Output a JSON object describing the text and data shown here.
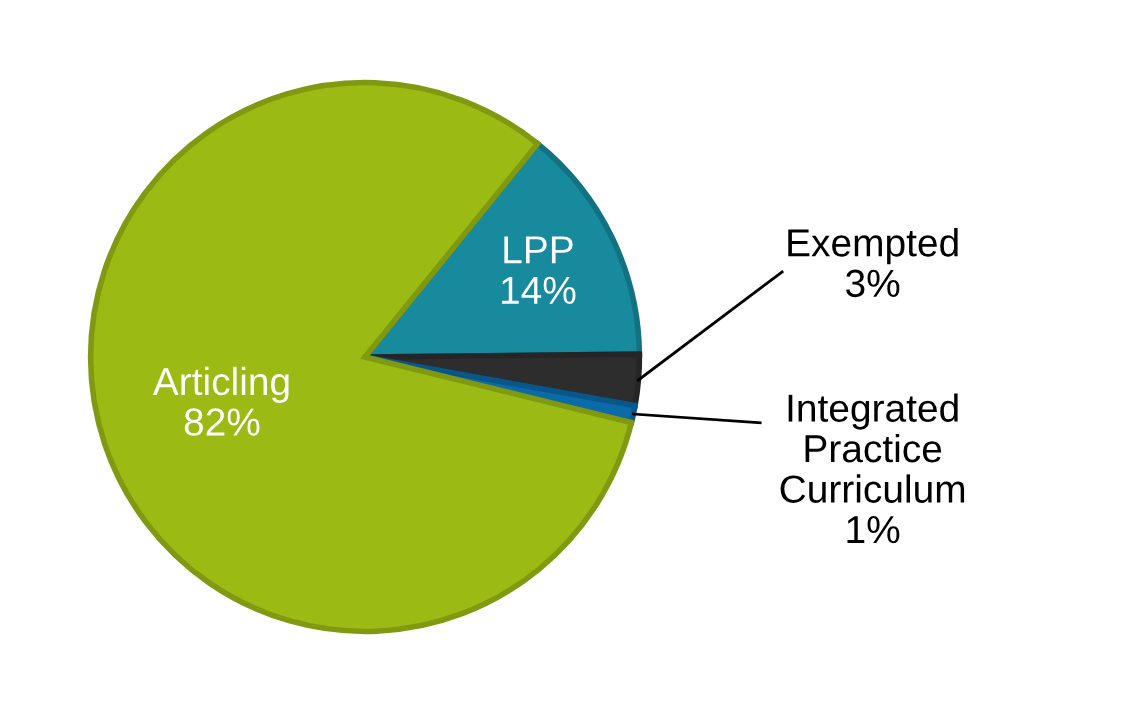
{
  "chart_data": {
    "type": "pie",
    "categories": [
      "LPP",
      "Exempted",
      "Integrated\nPractice\nCurriculum",
      "Articling"
    ],
    "values": [
      14,
      3,
      1,
      82
    ],
    "value_labels": [
      "14%",
      "3%",
      "1%",
      "82%"
    ],
    "colors": [
      "#178a9e",
      "#2d2d2d",
      "#0b6aa8",
      "#9bbb14"
    ],
    "legend": false
  }
}
